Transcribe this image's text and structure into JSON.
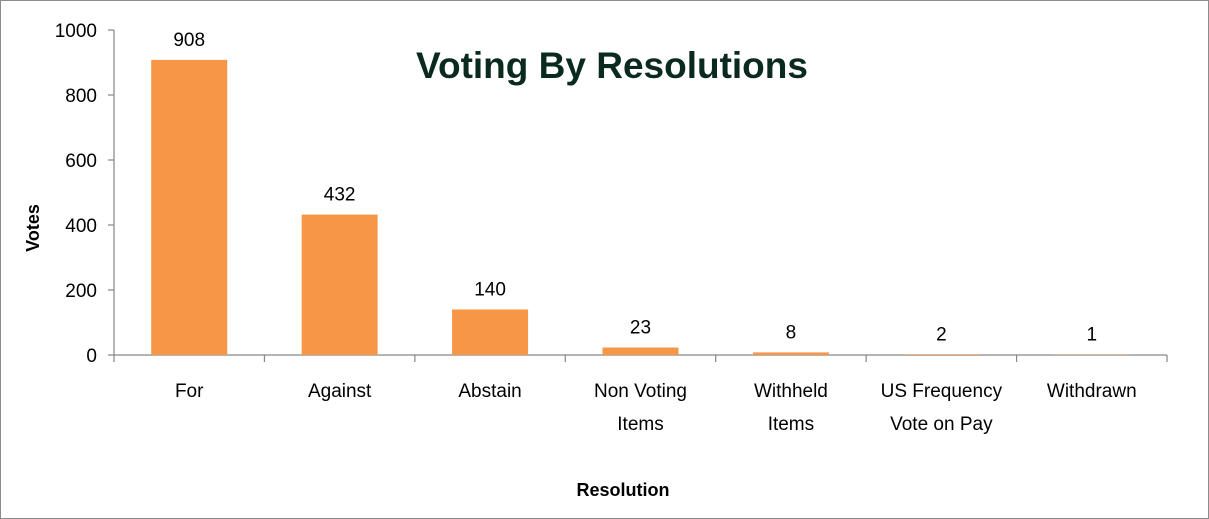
{
  "chart_data": {
    "type": "bar",
    "title": "Voting By Resolutions",
    "xlabel": "Resolution",
    "ylabel": "Votes",
    "categories": [
      [
        "For"
      ],
      [
        "Against"
      ],
      [
        "Abstain"
      ],
      [
        "Non Voting",
        "Items"
      ],
      [
        "Withheld",
        "Items"
      ],
      [
        "US Frequency",
        "Vote on Pay"
      ],
      [
        "Withdrawn"
      ]
    ],
    "values": [
      908,
      432,
      140,
      23,
      8,
      2,
      1
    ],
    "data_labels": [
      "908",
      "432",
      "140",
      "23",
      "8",
      "2",
      "1"
    ],
    "ylim": [
      0,
      1000
    ],
    "yticks": [
      0,
      200,
      400,
      600,
      800,
      1000
    ],
    "ytick_labels": [
      "0",
      "200",
      "400",
      "600",
      "800",
      "1000"
    ],
    "grid": false,
    "legend": "none",
    "colors": {
      "bar": "#f79646",
      "axis": "#868686",
      "title": "#0b2a1e"
    }
  }
}
